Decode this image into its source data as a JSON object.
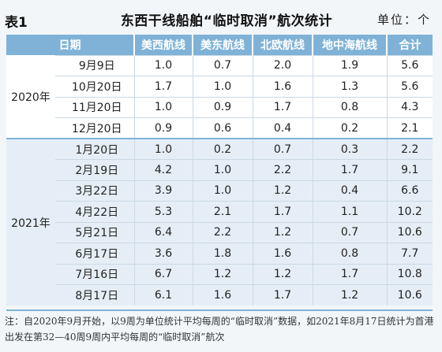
{
  "header": {
    "table_no": "表1",
    "title": "东西干线船舶“临时取消”航次统计",
    "unit": "单位：个"
  },
  "table": {
    "columns": [
      "日期",
      "美西航线",
      "美东航线",
      "北欧航线",
      "地中海航线",
      "合计"
    ],
    "groups": [
      {
        "year": "2020年",
        "rows": [
          {
            "date": "9月9日",
            "values": [
              "1.0",
              "0.7",
              "2.0",
              "1.9",
              "5.6"
            ]
          },
          {
            "date": "10月20日",
            "values": [
              "1.7",
              "1.0",
              "1.6",
              "1.3",
              "5.6"
            ]
          },
          {
            "date": "11月20日",
            "values": [
              "1.0",
              "0.9",
              "1.7",
              "0.8",
              "4.3"
            ]
          },
          {
            "date": "12月20日",
            "values": [
              "0.9",
              "0.6",
              "0.4",
              "0.2",
              "2.1"
            ]
          }
        ]
      },
      {
        "year": "2021年",
        "rows": [
          {
            "date": "1月20日",
            "values": [
              "1.0",
              "0.2",
              "0.7",
              "0.3",
              "2.2"
            ]
          },
          {
            "date": "2月19日",
            "values": [
              "4.2",
              "1.0",
              "2.2",
              "1.7",
              "9.1"
            ]
          },
          {
            "date": "3月22日",
            "values": [
              "3.9",
              "1.0",
              "1.2",
              "0.4",
              "6.6"
            ]
          },
          {
            "date": "4月22日",
            "values": [
              "5.3",
              "2.1",
              "1.7",
              "1.1",
              "10.2"
            ]
          },
          {
            "date": "5月21日",
            "values": [
              "6.4",
              "2.2",
              "1.2",
              "0.7",
              "10.6"
            ]
          },
          {
            "date": "6月17日",
            "values": [
              "3.6",
              "1.8",
              "1.6",
              "0.8",
              "7.7"
            ]
          },
          {
            "date": "7月16日",
            "values": [
              "6.7",
              "1.2",
              "1.2",
              "1.7",
              "10.8"
            ]
          },
          {
            "date": "8月17日",
            "values": [
              "6.1",
              "1.6",
              "1.7",
              "1.2",
              "10.6"
            ]
          }
        ]
      }
    ]
  },
  "note": "注：自2020年9月开始，以9周为单位统计平均每周的“临时取消”数据，如2021年8月17日统计为首港出发在第32—40周9周内平均每周的“临时取消”航次"
}
